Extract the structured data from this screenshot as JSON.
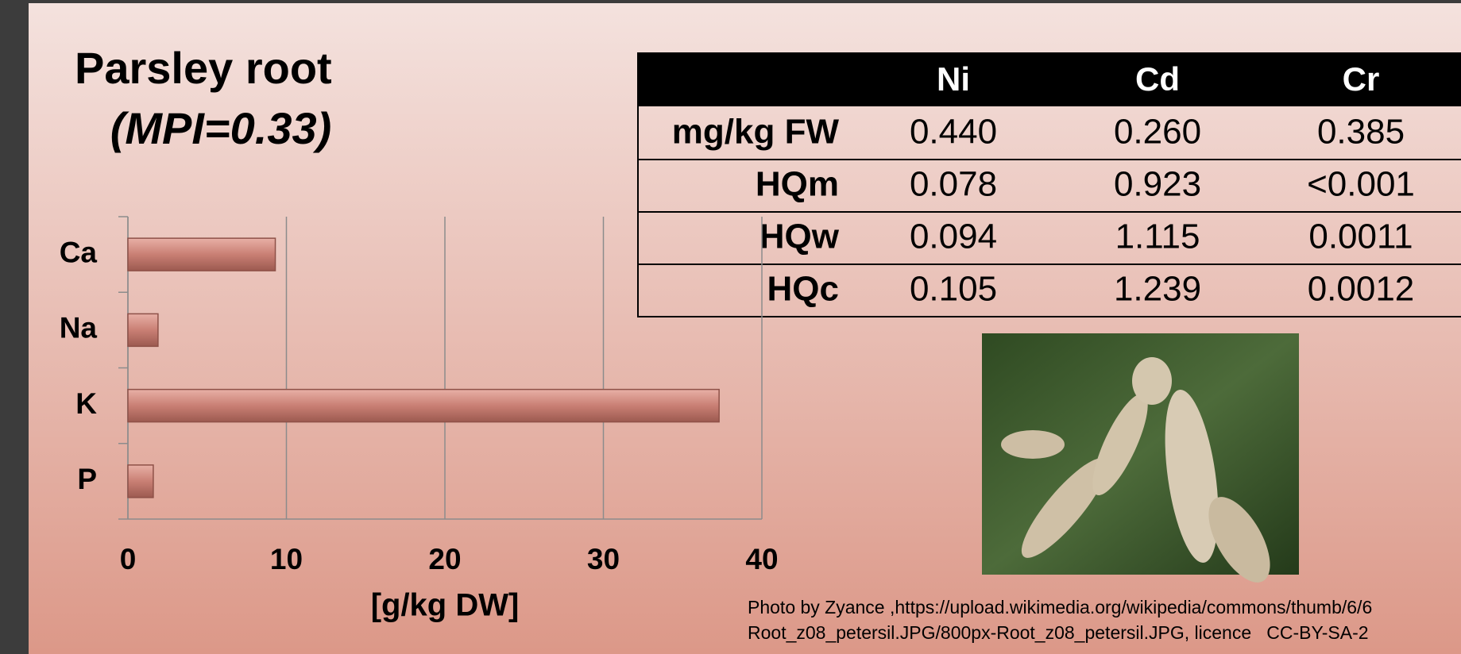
{
  "title": "Parsley root",
  "subtitle": "(MPI=0.33)",
  "chart_data": {
    "type": "bar",
    "orientation": "horizontal",
    "categories": [
      "Ca",
      "Na",
      "K",
      "P"
    ],
    "values": [
      9.3,
      1.9,
      37.3,
      1.6
    ],
    "color": "#c97f74",
    "xlim": [
      0,
      40
    ],
    "xticks": [
      0,
      10,
      20,
      30,
      40
    ],
    "xlabel": "[g/kg DW]",
    "grid": true
  },
  "table": {
    "columns": [
      "Ni",
      "Cd",
      "Cr"
    ],
    "rows": [
      {
        "label": "mg/kg FW",
        "cells": [
          "0.440",
          "0.260",
          "0.385"
        ]
      },
      {
        "label": "HQm",
        "cells": [
          "0.078",
          "0.923",
          "<0.001"
        ]
      },
      {
        "label": "HQw",
        "cells": [
          "0.094",
          "1.115",
          "0.0011"
        ]
      },
      {
        "label": "HQc",
        "cells": [
          "0.105",
          "1.239",
          "0.0012"
        ]
      }
    ]
  },
  "photo_caption": [
    "Photo by Zyance ,https://upload.wikimedia.org/wikipedia/commons/thumb/6/6",
    "Root_z08_petersil.JPG/800px-Root_z08_petersil.JPG, licence   CC-BY-SA-2"
  ]
}
